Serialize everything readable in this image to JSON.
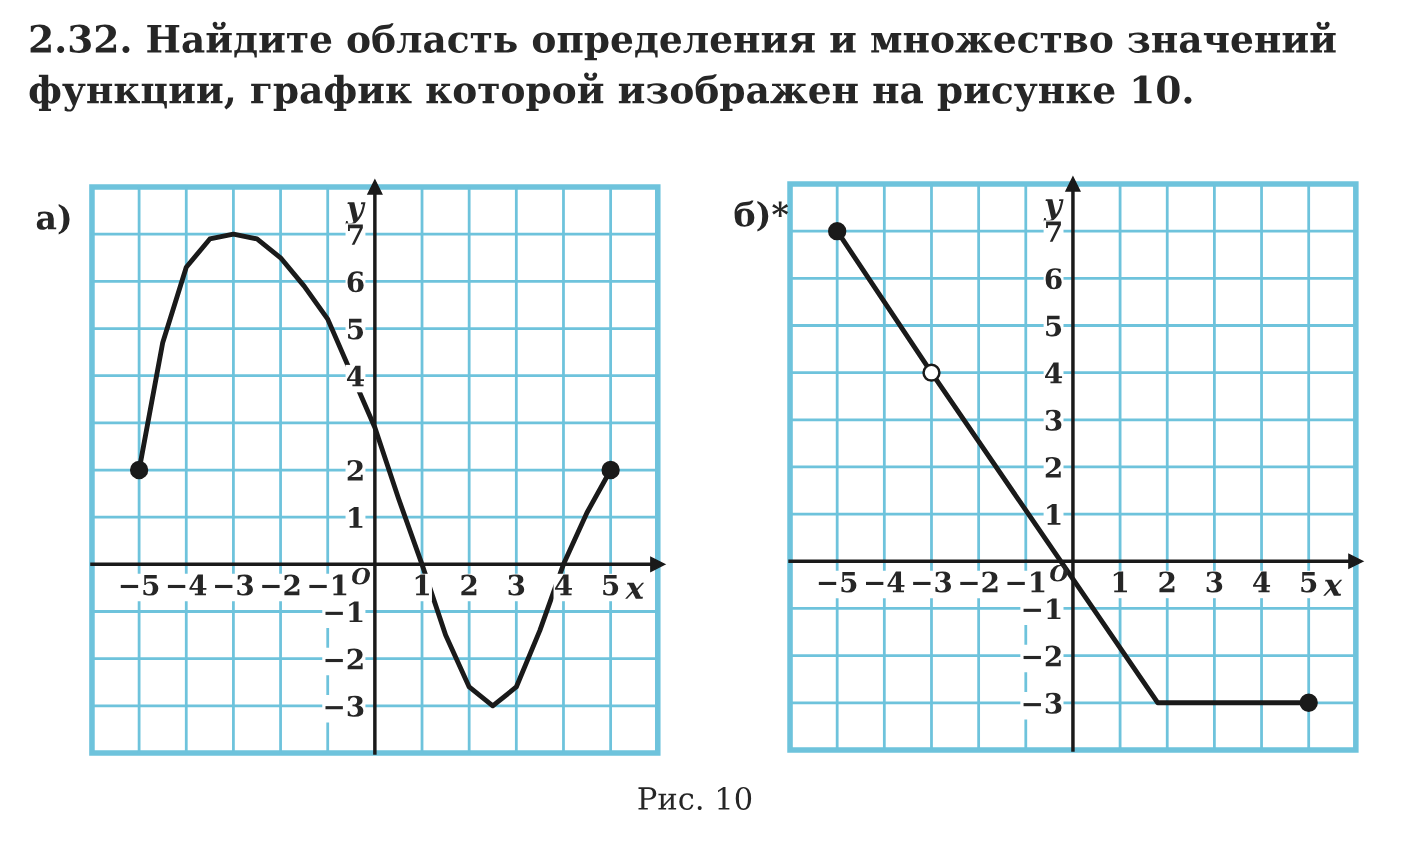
{
  "chart_data": [
    {
      "type": "line",
      "title": "а)",
      "xlabel": "x",
      "ylabel": "y",
      "xlim": [
        -6,
        6
      ],
      "ylim": [
        -4,
        8
      ],
      "xticks": [
        {
          "value": -5,
          "label": "−5"
        },
        {
          "value": -4,
          "label": "−4"
        },
        {
          "value": -3,
          "label": "−3"
        },
        {
          "value": -2,
          "label": "−2"
        },
        {
          "value": -1,
          "label": "−1"
        },
        1,
        2,
        3,
        4,
        5
      ],
      "yticks": [
        {
          "value": -3,
          "label": "−3"
        },
        {
          "value": -2,
          "label": "−2"
        },
        {
          "value": -1,
          "label": "−1"
        },
        1,
        2,
        {
          "value": 3,
          "label": null
        },
        4,
        5,
        6,
        7
      ],
      "grid": true,
      "annotations": [
        "2.32. Найдите область определения и множество значений функции, график которой изображен на рисунке 10.",
        "O"
      ],
      "series": [
        {
          "color": "#1a1a1a",
          "x": [
            -5,
            -4.5,
            -4,
            -3.5,
            -3,
            -2.5,
            -2,
            -1.5,
            -1,
            0,
            0.5,
            1,
            1.5,
            2,
            2.5,
            3,
            3.5,
            4,
            4.5,
            5
          ],
          "values": [
            2,
            4.7,
            6.3,
            6.9,
            7,
            6.9,
            6.5,
            5.9,
            5.2,
            2.9,
            1.4,
            0,
            -1.5,
            -2.6,
            -3,
            -2.6,
            -1.4,
            0,
            1.1,
            2
          ]
        },
        {
          "type": "scatter",
          "color": "#1a1a1a",
          "marker": "circle",
          "x": [
            -5,
            5
          ],
          "values": [
            2,
            2
          ]
        }
      ]
    },
    {
      "type": "line",
      "title": "б)*",
      "xlabel": "x",
      "ylabel": "y",
      "xlim": [
        -6,
        6
      ],
      "ylim": [
        -4,
        8
      ],
      "xticks": [
        {
          "value": -5,
          "label": "−5"
        },
        {
          "value": -4,
          "label": "−4"
        },
        {
          "value": -3,
          "label": "−3"
        },
        {
          "value": -2,
          "label": "−2"
        },
        {
          "value": -1,
          "label": "−1"
        },
        1,
        2,
        3,
        4,
        5
      ],
      "yticks": [
        {
          "value": -3,
          "label": "−3"
        },
        {
          "value": -2,
          "label": "−2"
        },
        {
          "value": -1,
          "label": "−1"
        },
        1,
        2,
        3,
        4,
        5,
        6,
        7
      ],
      "grid": true,
      "annotations": [
        "O",
        "Рис. 10"
      ],
      "series": [
        {
          "color": "#1a1a1a",
          "x": [
            -5,
            -3,
            1.8,
            5
          ],
          "values": [
            7,
            4,
            -3,
            -3
          ]
        },
        {
          "type": "scatter",
          "color": "#1a1a1a",
          "marker": "circle",
          "x": [
            -5,
            5
          ],
          "values": [
            7,
            -3
          ]
        },
        {
          "type": "scatter",
          "color": "#ffffff",
          "marker": "circle",
          "x": [
            -3
          ],
          "values": [
            4
          ]
        }
      ]
    }
  ]
}
